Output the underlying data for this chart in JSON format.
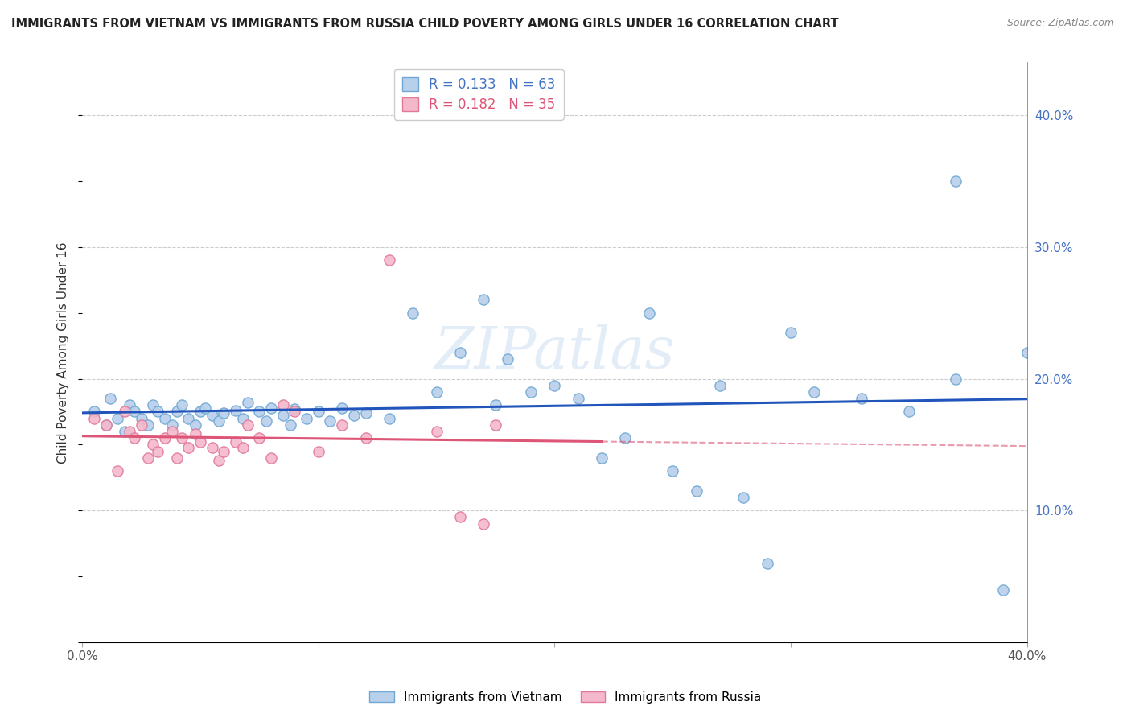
{
  "title": "IMMIGRANTS FROM VIETNAM VS IMMIGRANTS FROM RUSSIA CHILD POVERTY AMONG GIRLS UNDER 16 CORRELATION CHART",
  "source": "Source: ZipAtlas.com",
  "ylabel": "Child Poverty Among Girls Under 16",
  "xlim": [
    0.0,
    0.4
  ],
  "ylim": [
    0.0,
    0.44
  ],
  "R_vietnam": 0.133,
  "N_vietnam": 63,
  "R_russia": 0.182,
  "N_russia": 35,
  "color_vietnam": "#b8d0ea",
  "color_russia": "#f4b8cc",
  "edge_vietnam": "#6fa8d4",
  "edge_russia": "#e07898",
  "line_vietnam": "#2255bb",
  "line_russia": "#dd5577",
  "background_color": "#ffffff",
  "vietnam_x": [
    0.005,
    0.01,
    0.012,
    0.015,
    0.018,
    0.02,
    0.022,
    0.025,
    0.028,
    0.03,
    0.032,
    0.035,
    0.038,
    0.04,
    0.042,
    0.045,
    0.048,
    0.05,
    0.052,
    0.055,
    0.058,
    0.06,
    0.065,
    0.068,
    0.07,
    0.075,
    0.078,
    0.08,
    0.085,
    0.088,
    0.09,
    0.095,
    0.1,
    0.105,
    0.11,
    0.115,
    0.12,
    0.13,
    0.14,
    0.15,
    0.16,
    0.17,
    0.175,
    0.18,
    0.19,
    0.2,
    0.21,
    0.22,
    0.23,
    0.24,
    0.25,
    0.26,
    0.27,
    0.28,
    0.29,
    0.3,
    0.31,
    0.33,
    0.35,
    0.37,
    0.39,
    0.4,
    0.37
  ],
  "vietnam_y": [
    0.175,
    0.165,
    0.185,
    0.17,
    0.16,
    0.18,
    0.175,
    0.17,
    0.165,
    0.18,
    0.175,
    0.17,
    0.165,
    0.175,
    0.18,
    0.17,
    0.165,
    0.175,
    0.178,
    0.172,
    0.168,
    0.174,
    0.176,
    0.17,
    0.182,
    0.175,
    0.168,
    0.178,
    0.172,
    0.165,
    0.177,
    0.17,
    0.175,
    0.168,
    0.178,
    0.172,
    0.174,
    0.17,
    0.25,
    0.19,
    0.22,
    0.26,
    0.18,
    0.215,
    0.19,
    0.195,
    0.185,
    0.14,
    0.155,
    0.25,
    0.13,
    0.115,
    0.195,
    0.11,
    0.06,
    0.235,
    0.19,
    0.185,
    0.175,
    0.2,
    0.04,
    0.22,
    0.35
  ],
  "russia_x": [
    0.005,
    0.01,
    0.015,
    0.018,
    0.02,
    0.022,
    0.025,
    0.028,
    0.03,
    0.032,
    0.035,
    0.038,
    0.04,
    0.042,
    0.045,
    0.048,
    0.05,
    0.055,
    0.058,
    0.06,
    0.065,
    0.068,
    0.07,
    0.075,
    0.08,
    0.085,
    0.09,
    0.1,
    0.11,
    0.12,
    0.13,
    0.15,
    0.16,
    0.17,
    0.175
  ],
  "russia_y": [
    0.17,
    0.165,
    0.13,
    0.175,
    0.16,
    0.155,
    0.165,
    0.14,
    0.15,
    0.145,
    0.155,
    0.16,
    0.14,
    0.155,
    0.148,
    0.158,
    0.152,
    0.148,
    0.138,
    0.145,
    0.152,
    0.148,
    0.165,
    0.155,
    0.14,
    0.18,
    0.175,
    0.145,
    0.165,
    0.155,
    0.29,
    0.16,
    0.095,
    0.09,
    0.165
  ],
  "watermark_text": "ZIPatlas",
  "watermark_color": "#c8ddf0",
  "watermark_alpha": 0.5
}
